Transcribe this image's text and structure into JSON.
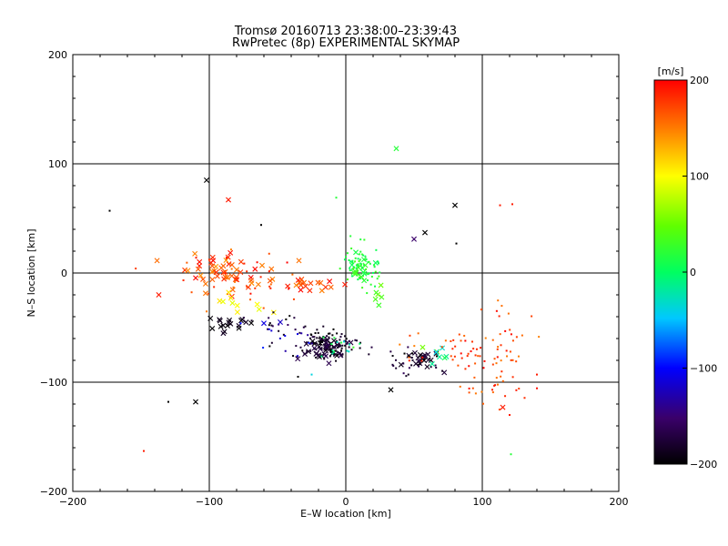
{
  "chart_data": {
    "type": "scatter",
    "title": "Tromsø 20160713 23:38:00–23:39:43",
    "subtitle": "RwPretec (8p) EXPERIMENTAL SKYMAP",
    "xlabel": "E–W location [km]",
    "ylabel": "N–S location [km]",
    "xlim": [
      -200,
      200
    ],
    "ylim": [
      -200,
      200
    ],
    "x_ticks": [
      "−200",
      "−100",
      "0",
      "100",
      "200"
    ],
    "y_ticks": [
      "−200",
      "−100",
      "0",
      "100",
      "200"
    ],
    "grid": true,
    "colorbar": {
      "label": "[m/s]",
      "range": [
        -200,
        200
      ],
      "ticks": [
        "−200",
        "−100",
        "0",
        "100",
        "200"
      ],
      "colormap": "black-purple-blue-cyan-green-yellow-orange-red"
    },
    "clusters": [
      {
        "shape": "cross",
        "cx": -87,
        "cy": 1,
        "sx": 18,
        "sy": 9,
        "vmin": 140,
        "vmax": 200,
        "n": 55,
        "seed": 1
      },
      {
        "shape": "dot",
        "cx": -80,
        "cy": -5,
        "sx": 28,
        "sy": 12,
        "vmin": 150,
        "vmax": 200,
        "n": 35,
        "seed": 2
      },
      {
        "shape": "cross",
        "cx": -30,
        "cy": -10,
        "sx": 12,
        "sy": 4,
        "vmin": 150,
        "vmax": 200,
        "n": 18,
        "seed": 3
      },
      {
        "shape": "cross",
        "cx": -75,
        "cy": -25,
        "sx": 14,
        "sy": 6,
        "vmin": 90,
        "vmax": 120,
        "n": 10,
        "seed": 4
      },
      {
        "shape": "cross",
        "cx": -85,
        "cy": -45,
        "sx": 10,
        "sy": 5,
        "vmin": -200,
        "vmax": -180,
        "n": 18,
        "seed": 5
      },
      {
        "shape": "dot",
        "cx": -50,
        "cy": -48,
        "sx": 12,
        "sy": 6,
        "vmin": -200,
        "vmax": -150,
        "n": 20,
        "seed": 6
      },
      {
        "shape": "dot",
        "cx": -12,
        "cy": -65,
        "sx": 10,
        "sy": 6,
        "vmin": -200,
        "vmax": -170,
        "n": 110,
        "seed": 7
      },
      {
        "shape": "cross",
        "cx": -15,
        "cy": -68,
        "sx": 9,
        "sy": 6,
        "vmin": -200,
        "vmax": -160,
        "n": 40,
        "seed": 8
      },
      {
        "shape": "dot",
        "cx": -5,
        "cy": -70,
        "sx": 8,
        "sy": 5,
        "vmin": -40,
        "vmax": 30,
        "n": 15,
        "seed": 9
      },
      {
        "shape": "dot",
        "cx": 12,
        "cy": 5,
        "sx": 7,
        "sy": 10,
        "vmin": 0,
        "vmax": 40,
        "n": 80,
        "seed": 10
      },
      {
        "shape": "cross",
        "cx": 10,
        "cy": 3,
        "sx": 5,
        "sy": 7,
        "vmin": 0,
        "vmax": 40,
        "n": 15,
        "seed": 11
      },
      {
        "shape": "cross",
        "cx": 55,
        "cy": -78,
        "sx": 8,
        "sy": 5,
        "vmin": -200,
        "vmax": -170,
        "n": 18,
        "seed": 12
      },
      {
        "shape": "dot",
        "cx": 50,
        "cy": -82,
        "sx": 10,
        "sy": 6,
        "vmin": -200,
        "vmax": -160,
        "n": 30,
        "seed": 13
      },
      {
        "shape": "cross",
        "cx": 70,
        "cy": -75,
        "sx": 6,
        "sy": 4,
        "vmin": -60,
        "vmax": 60,
        "n": 8,
        "seed": 14
      },
      {
        "shape": "dot",
        "cx": 80,
        "cy": -70,
        "sx": 18,
        "sy": 12,
        "vmin": 150,
        "vmax": 200,
        "n": 45,
        "seed": 15
      },
      {
        "shape": "dot",
        "cx": 115,
        "cy": -70,
        "sx": 10,
        "sy": 25,
        "vmin": 150,
        "vmax": 200,
        "n": 30,
        "seed": 16
      },
      {
        "shape": "dot",
        "cx": 105,
        "cy": -105,
        "sx": 15,
        "sy": 8,
        "vmin": 150,
        "vmax": 200,
        "n": 20,
        "seed": 17
      },
      {
        "shape": "dot",
        "cx": -40,
        "cy": -60,
        "sx": 15,
        "sy": 8,
        "vmin": -140,
        "vmax": -90,
        "n": 12,
        "seed": 18
      },
      {
        "shape": "cross",
        "cx": 25,
        "cy": -25,
        "sx": 6,
        "sy": 5,
        "vmin": 30,
        "vmax": 60,
        "n": 6,
        "seed": 19
      }
    ],
    "points": [
      {
        "x": -148,
        "y": -163,
        "v": 190,
        "shape": "dot"
      },
      {
        "x": -173,
        "y": 57,
        "v": -200,
        "shape": "dot"
      },
      {
        "x": -102,
        "y": 85,
        "v": -200,
        "shape": "cross"
      },
      {
        "x": -86,
        "y": 67,
        "v": 190,
        "shape": "cross"
      },
      {
        "x": -110,
        "y": -118,
        "v": -200,
        "shape": "cross"
      },
      {
        "x": -130,
        "y": -118,
        "v": -200,
        "shape": "dot"
      },
      {
        "x": 37,
        "y": 114,
        "v": 20,
        "shape": "cross"
      },
      {
        "x": 80,
        "y": 62,
        "v": -200,
        "shape": "cross"
      },
      {
        "x": 58,
        "y": 37,
        "v": -200,
        "shape": "cross"
      },
      {
        "x": 113,
        "y": 62,
        "v": 190,
        "shape": "dot"
      },
      {
        "x": 122,
        "y": 63,
        "v": 190,
        "shape": "dot"
      },
      {
        "x": -7,
        "y": 69,
        "v": 20,
        "shape": "dot"
      },
      {
        "x": 50,
        "y": 31,
        "v": -150,
        "shape": "cross"
      },
      {
        "x": 81,
        "y": 27,
        "v": -200,
        "shape": "dot"
      },
      {
        "x": 33,
        "y": -107,
        "v": -200,
        "shape": "cross"
      },
      {
        "x": 115,
        "y": -123,
        "v": 190,
        "shape": "cross"
      },
      {
        "x": 121,
        "y": -166,
        "v": 20,
        "shape": "dot"
      },
      {
        "x": 120,
        "y": -130,
        "v": 190,
        "shape": "dot"
      },
      {
        "x": 140,
        "y": -93,
        "v": 190,
        "shape": "dot"
      },
      {
        "x": -62,
        "y": 44,
        "v": -200,
        "shape": "dot"
      },
      {
        "x": -137,
        "y": -20,
        "v": 190,
        "shape": "cross"
      },
      {
        "x": -77,
        "y": -46,
        "v": -100,
        "shape": "dot"
      },
      {
        "x": -48,
        "y": -45,
        "v": -120,
        "shape": "cross"
      },
      {
        "x": -60,
        "y": -46,
        "v": -110,
        "shape": "cross"
      },
      {
        "x": -25,
        "y": -93,
        "v": -40,
        "shape": "dot"
      },
      {
        "x": -35,
        "y": -95,
        "v": -200,
        "shape": "dot"
      }
    ]
  }
}
